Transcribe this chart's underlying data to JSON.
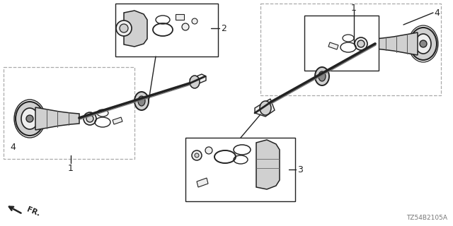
{
  "bg_color": "#ffffff",
  "diagram_id": "TZ54B2105A",
  "fr_label": "FR.",
  "line_color": "#222222",
  "gray_fill": "#d0d0d0",
  "dark_gray": "#888888",
  "light_gray": "#eeeeee"
}
